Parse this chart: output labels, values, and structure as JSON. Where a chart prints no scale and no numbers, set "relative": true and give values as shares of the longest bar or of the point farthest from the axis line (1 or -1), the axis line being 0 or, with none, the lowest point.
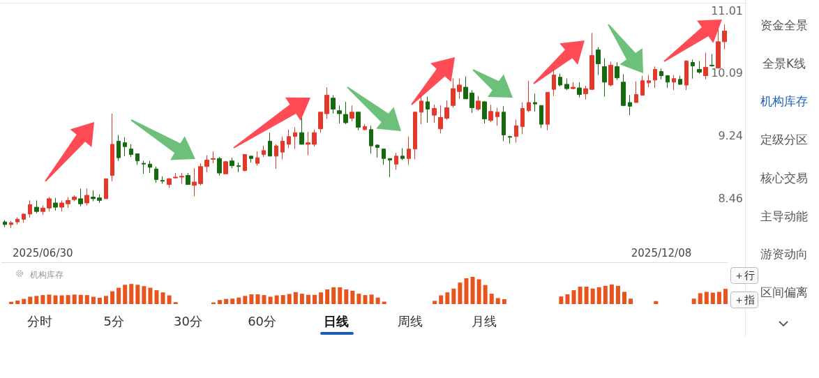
{
  "chart_data": [
    {
      "type": "candlestick",
      "categories": [
        null,
        null,
        null,
        null,
        null,
        null,
        "2025/06/30",
        null,
        null,
        null,
        null,
        null,
        null,
        null,
        null,
        null,
        null,
        null,
        null,
        null,
        null,
        null,
        null,
        null,
        null,
        null,
        null,
        null,
        null,
        null,
        null,
        null,
        null,
        null,
        null,
        null,
        null,
        null,
        null,
        null,
        null,
        null,
        null,
        null,
        null,
        null,
        null,
        null,
        null,
        null,
        null,
        null,
        null,
        null,
        null,
        null,
        null,
        null,
        null,
        null,
        null,
        null,
        null,
        null,
        null,
        null,
        null,
        null,
        null,
        null,
        null,
        null,
        null,
        null,
        null,
        null,
        null,
        null,
        null,
        null,
        null,
        null,
        null,
        null,
        null,
        null,
        null,
        null,
        null,
        null,
        null,
        null,
        null,
        null,
        null,
        null,
        null,
        null,
        null,
        null,
        null,
        null,
        null,
        null,
        "2025/12/08",
        null,
        null,
        null,
        null,
        null,
        null,
        null,
        null,
        null,
        null
      ],
      "ohlc": [
        [
          8.19,
          8.21,
          8.13,
          8.16
        ],
        [
          8.16,
          8.2,
          8.12,
          8.18
        ],
        [
          8.19,
          8.24,
          8.16,
          8.22
        ],
        [
          8.22,
          8.29,
          8.18,
          8.28
        ],
        [
          8.28,
          8.44,
          8.24,
          8.39
        ],
        [
          8.36,
          8.44,
          8.29,
          8.31
        ],
        [
          8.31,
          8.38,
          8.27,
          8.35
        ],
        [
          8.35,
          8.48,
          8.31,
          8.46
        ],
        [
          8.41,
          8.47,
          8.32,
          8.36
        ],
        [
          8.36,
          8.44,
          8.31,
          8.41
        ],
        [
          8.4,
          8.48,
          8.35,
          8.44
        ],
        [
          8.45,
          8.5,
          8.43,
          8.48
        ],
        [
          8.46,
          8.58,
          8.37,
          8.4
        ],
        [
          8.41,
          8.58,
          8.38,
          8.5
        ],
        [
          8.48,
          8.56,
          8.43,
          8.46
        ],
        [
          8.47,
          8.51,
          8.41,
          8.44
        ],
        [
          8.46,
          8.7,
          8.46,
          8.7
        ],
        [
          8.74,
          9.53,
          8.67,
          9.13
        ],
        [
          9.17,
          9.25,
          8.92,
          8.96
        ],
        [
          9.15,
          9.22,
          8.98,
          9.1
        ],
        [
          9.07,
          9.13,
          8.97,
          9.0
        ],
        [
          9.01,
          9.01,
          8.87,
          8.92
        ],
        [
          8.89,
          8.92,
          8.76,
          8.88
        ],
        [
          8.88,
          8.92,
          8.77,
          8.84
        ],
        [
          8.82,
          8.85,
          8.65,
          8.69
        ],
        [
          8.68,
          8.73,
          8.64,
          8.67
        ],
        [
          8.63,
          8.71,
          8.59,
          8.7
        ],
        [
          8.71,
          8.77,
          8.7,
          8.72
        ],
        [
          8.72,
          8.77,
          8.64,
          8.73
        ],
        [
          8.74,
          8.77,
          8.63,
          8.63
        ],
        [
          8.62,
          8.83,
          8.49,
          8.66
        ],
        [
          8.64,
          8.89,
          8.62,
          8.85
        ],
        [
          8.85,
          8.99,
          8.78,
          8.93
        ],
        [
          8.94,
          9.04,
          8.89,
          8.95
        ],
        [
          8.95,
          8.97,
          8.74,
          8.77
        ],
        [
          8.76,
          8.92,
          8.76,
          8.91
        ],
        [
          8.92,
          8.96,
          8.83,
          8.86
        ],
        [
          8.86,
          8.9,
          8.78,
          8.85
        ],
        [
          8.8,
          9.0,
          8.79,
          9.0
        ],
        [
          8.98,
          8.98,
          8.9,
          8.95
        ],
        [
          8.89,
          9.04,
          8.86,
          8.96
        ],
        [
          9.0,
          9.11,
          8.97,
          9.05
        ],
        [
          9.17,
          9.28,
          8.98,
          8.98
        ],
        [
          8.98,
          9.13,
          8.82,
          9.11
        ],
        [
          9.03,
          9.23,
          8.94,
          9.17
        ],
        [
          9.13,
          9.32,
          9.08,
          9.23
        ],
        [
          9.23,
          9.35,
          9.07,
          9.28
        ],
        [
          9.28,
          9.47,
          9.13,
          9.13
        ],
        [
          9.13,
          9.29,
          8.99,
          9.15
        ],
        [
          9.13,
          9.32,
          9.1,
          9.28
        ],
        [
          9.33,
          9.55,
          9.28,
          9.55
        ],
        [
          9.53,
          9.89,
          9.46,
          9.78
        ],
        [
          9.74,
          9.78,
          9.53,
          9.59
        ],
        [
          9.57,
          9.64,
          9.4,
          9.53
        ],
        [
          9.52,
          9.69,
          9.39,
          9.41
        ],
        [
          9.47,
          9.64,
          9.43,
          9.55
        ],
        [
          9.55,
          9.56,
          9.31,
          9.35
        ],
        [
          9.32,
          9.39,
          9.31,
          9.36
        ],
        [
          9.32,
          9.37,
          9.01,
          9.11
        ],
        [
          9.12,
          9.13,
          8.96,
          9.09
        ],
        [
          9.07,
          9.07,
          8.87,
          8.95
        ],
        [
          8.95,
          8.95,
          8.72,
          8.93
        ],
        [
          8.88,
          9.02,
          8.81,
          8.98
        ],
        [
          8.98,
          9.08,
          8.93,
          8.95
        ],
        [
          8.95,
          9.23,
          8.87,
          9.07
        ],
        [
          9.07,
          9.56,
          8.94,
          9.55
        ],
        [
          9.55,
          9.78,
          9.39,
          9.7
        ],
        [
          9.69,
          9.76,
          9.41,
          9.59
        ],
        [
          9.51,
          9.65,
          9.41,
          9.6
        ],
        [
          9.33,
          9.64,
          9.27,
          9.48
        ],
        [
          9.47,
          9.71,
          9.45,
          9.61
        ],
        [
          9.64,
          10.01,
          9.61,
          9.87
        ],
        [
          9.83,
          10.01,
          9.73,
          9.92
        ],
        [
          9.89,
          10.04,
          9.73,
          9.73
        ],
        [
          9.81,
          9.85,
          9.54,
          9.61
        ],
        [
          9.59,
          9.77,
          9.57,
          9.7
        ],
        [
          9.69,
          9.7,
          9.4,
          9.46
        ],
        [
          9.44,
          9.65,
          9.42,
          9.56
        ],
        [
          9.49,
          9.61,
          9.37,
          9.55
        ],
        [
          9.55,
          9.63,
          9.17,
          9.25
        ],
        [
          9.23,
          9.24,
          9.14,
          9.22
        ],
        [
          9.23,
          9.45,
          9.15,
          9.37
        ],
        [
          9.36,
          9.68,
          9.26,
          9.6
        ],
        [
          9.57,
          9.98,
          9.55,
          9.68
        ],
        [
          9.68,
          9.8,
          9.56,
          9.66
        ],
        [
          9.64,
          9.64,
          9.34,
          9.39
        ],
        [
          9.39,
          9.82,
          9.31,
          9.82
        ],
        [
          9.86,
          10.14,
          9.77,
          10.06
        ],
        [
          10.03,
          10.08,
          9.9,
          9.92
        ],
        [
          9.93,
          10.01,
          9.85,
          9.87
        ],
        [
          9.87,
          9.96,
          9.86,
          9.89
        ],
        [
          9.88,
          9.96,
          9.75,
          9.79
        ],
        [
          9.8,
          9.91,
          9.72,
          9.87
        ],
        [
          9.86,
          10.67,
          9.85,
          10.34
        ],
        [
          10.42,
          10.46,
          10.06,
          10.22
        ],
        [
          10.18,
          10.3,
          9.76,
          9.96
        ],
        [
          9.92,
          10.25,
          9.9,
          10.2
        ],
        [
          10.18,
          10.24,
          9.99,
          10.02
        ],
        [
          9.96,
          10.07,
          9.63,
          9.64
        ],
        [
          9.68,
          9.78,
          9.51,
          9.63
        ],
        [
          9.68,
          9.97,
          9.68,
          9.79
        ],
        [
          9.78,
          10.05,
          9.78,
          9.98
        ],
        [
          9.95,
          10.06,
          9.89,
          9.98
        ],
        [
          9.99,
          10.18,
          9.88,
          10.14
        ],
        [
          10.11,
          10.15,
          10.0,
          10.05
        ],
        [
          10.05,
          10.06,
          9.88,
          9.96
        ],
        [
          9.96,
          10.06,
          9.85,
          10.01
        ],
        [
          10.0,
          10.05,
          9.92,
          9.93
        ],
        [
          9.92,
          10.27,
          9.85,
          10.26
        ],
        [
          10.24,
          10.28,
          10.01,
          10.19
        ],
        [
          10.14,
          10.26,
          10.08,
          10.1
        ],
        [
          10.05,
          10.38,
          10.0,
          10.17
        ],
        [
          10.2,
          10.36,
          10.18,
          10.19
        ],
        [
          10.16,
          10.73,
          10.15,
          10.54
        ],
        [
          10.54,
          10.8,
          10.43,
          10.7
        ]
      ],
      "log": "y",
      "ylim": [
        7.74,
        11.12
      ],
      "yticks": [
        11.01,
        10.09,
        9.24,
        8.46
      ],
      "annotations": [
        "资金全景",
        "全景K线",
        "机构库存",
        "定级分区",
        "核心交易",
        "主导动能",
        "游资动向",
        "区间偏离",
        "分时",
        "5分",
        "30分",
        "60分",
        "日线",
        "周线",
        "月线"
      ]
    },
    {
      "type": "bar",
      "title": "机构库存",
      "relative": true,
      "tick_labels": false,
      "color": "#e8541e",
      "categories": [
        null,
        null,
        null,
        null,
        null,
        null,
        null,
        null,
        null,
        null,
        null,
        null,
        null,
        null,
        null,
        null,
        null,
        null,
        null,
        null,
        null,
        null,
        null,
        null,
        null,
        null,
        null,
        null,
        null,
        null,
        null,
        null,
        null,
        null,
        null,
        null,
        null,
        null,
        null,
        null,
        null,
        null,
        null,
        null,
        null,
        null,
        null,
        null,
        null,
        null,
        null,
        null,
        null,
        null,
        null,
        null,
        null,
        null,
        null,
        null,
        null,
        null,
        null,
        null,
        null,
        null,
        null,
        null,
        null,
        null,
        null,
        null,
        null,
        null,
        null,
        null,
        null,
        null,
        null,
        null,
        null,
        null,
        null,
        null,
        null,
        null,
        null,
        null,
        null,
        null,
        null,
        null,
        null,
        null,
        null,
        null,
        null,
        null,
        null,
        null,
        null,
        null,
        null,
        null,
        null,
        null,
        null,
        null,
        null,
        null,
        null,
        null,
        null,
        null,
        null
      ],
      "values": [
        0,
        0.085,
        0.13,
        0.19,
        0.27,
        0.3,
        0.33,
        0.35,
        0.32,
        0.32,
        0.33,
        0.35,
        0.34,
        0.33,
        0.27,
        0.23,
        0.3,
        0.47,
        0.6,
        0.71,
        0.74,
        0.71,
        0.66,
        0.6,
        0.51,
        0.43,
        0.32,
        0.07,
        0,
        0,
        0,
        0,
        0,
        0.06,
        0.15,
        0.19,
        0.2,
        0.24,
        0.3,
        0.36,
        0.36,
        0.33,
        0.27,
        0.32,
        0.33,
        0.37,
        0.44,
        0.38,
        0.34,
        0.34,
        0.43,
        0.54,
        0.62,
        0.62,
        0.54,
        0.49,
        0.38,
        0.33,
        0.35,
        0.24,
        0.09,
        0,
        0,
        0,
        0,
        0,
        0,
        0,
        0.12,
        0.32,
        0.43,
        0.57,
        0.79,
        0.95,
        1,
        0.91,
        0.7,
        0.38,
        0.22,
        0.18,
        0,
        0,
        0,
        0,
        0,
        0,
        0,
        0,
        0.28,
        0.36,
        0.51,
        0.64,
        0.64,
        0.57,
        0.62,
        0.67,
        0.72,
        0.67,
        0.45,
        0.2,
        0,
        0,
        0,
        0.11,
        0,
        0,
        0,
        0,
        0,
        0.2,
        0.4,
        0.45,
        0.42,
        0.45,
        0.56
      ],
      "annotations": [
        "＋行",
        "＋指"
      ]
    }
  ]
}
